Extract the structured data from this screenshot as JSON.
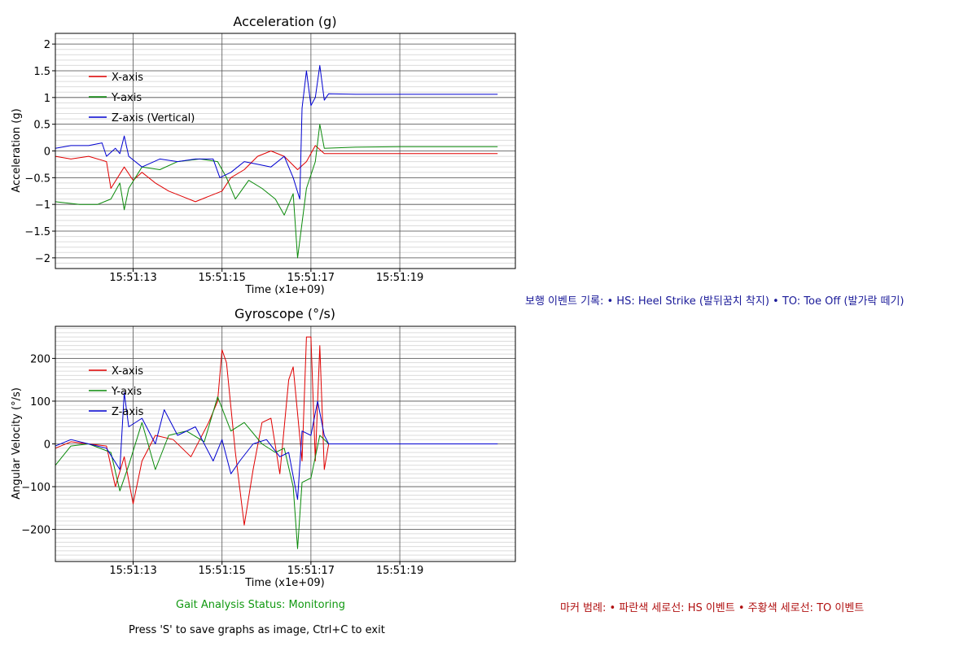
{
  "footer": {
    "status": "Gait Analysis Status: Monitoring",
    "hint": "Press 'S' to save graphs as image, Ctrl+C to exit"
  },
  "side_notes": {
    "events": "보행 이벤트 기록: • HS: Heel Strike (발뒤꿈치 착지) • TO: Toe Off (발가락 떼기)",
    "markers": "마커 범례: • 파란색 세로선: HS 이벤트 • 주황색 세로선: TO 이벤트"
  },
  "chart_data": [
    {
      "type": "line",
      "title": "Acceleration (g)",
      "xlabel": "Time (x1e+09)",
      "ylabel": "Acceleration (g)",
      "xlim": [
        "15:51:11.25",
        "15:51:21.60"
      ],
      "ylim": [
        -2.2,
        2.2
      ],
      "xticks": [
        "15:51:13",
        "15:51:15",
        "15:51:17",
        "15:51:19"
      ],
      "yticks": [
        "2",
        "1.5",
        "1",
        "0.5",
        "0",
        "−0.5",
        "−1",
        "−1.5",
        "−2"
      ],
      "grid": true,
      "legend_position": "top-left",
      "series": [
        {
          "name": "X-axis",
          "color": "#e00000",
          "points": [
            [
              "15:51:11.25",
              -0.1
            ],
            [
              "15:51:11.6",
              -0.15
            ],
            [
              "15:51:12",
              -0.1
            ],
            [
              "15:51:12.4",
              -0.2
            ],
            [
              "15:51:12.5",
              -0.7
            ],
            [
              "15:51:12.8",
              -0.3
            ],
            [
              "15:51:13",
              -0.55
            ],
            [
              "15:51:13.2",
              -0.4
            ],
            [
              "15:51:13.5",
              -0.6
            ],
            [
              "15:51:13.8",
              -0.75
            ],
            [
              "15:51:14.1",
              -0.85
            ],
            [
              "15:51:14.4",
              -0.95
            ],
            [
              "15:51:14.7",
              -0.85
            ],
            [
              "15:51:15",
              -0.75
            ],
            [
              "15:51:15.2",
              -0.5
            ],
            [
              "15:51:15.5",
              -0.35
            ],
            [
              "15:51:15.8",
              -0.1
            ],
            [
              "15:51:16.1",
              0.0
            ],
            [
              "15:51:16.4",
              -0.1
            ],
            [
              "15:51:16.7",
              -0.35
            ],
            [
              "15:51:16.9",
              -0.2
            ],
            [
              "15:51:17.1",
              0.1
            ],
            [
              "15:51:17.3",
              -0.05
            ],
            [
              "15:51:18",
              -0.05
            ],
            [
              "15:51:19",
              -0.05
            ],
            [
              "15:51:20",
              -0.05
            ],
            [
              "15:51:21.2",
              -0.05
            ]
          ]
        },
        {
          "name": "Y-axis",
          "color": "#0a8a0a",
          "points": [
            [
              "15:51:11.25",
              -0.95
            ],
            [
              "15:51:11.8",
              -1.0
            ],
            [
              "15:51:12.2",
              -1.0
            ],
            [
              "15:51:12.5",
              -0.9
            ],
            [
              "15:51:12.7",
              -0.6
            ],
            [
              "15:51:12.8",
              -1.1
            ],
            [
              "15:51:12.9",
              -0.7
            ],
            [
              "15:51:13.2",
              -0.3
            ],
            [
              "15:51:13.6",
              -0.35
            ],
            [
              "15:51:14",
              -0.2
            ],
            [
              "15:51:14.5",
              -0.15
            ],
            [
              "15:51:14.9",
              -0.2
            ],
            [
              "15:51:15.1",
              -0.5
            ],
            [
              "15:51:15.3",
              -0.9
            ],
            [
              "15:51:15.6",
              -0.55
            ],
            [
              "15:51:15.9",
              -0.7
            ],
            [
              "15:51:16.2",
              -0.9
            ],
            [
              "15:51:16.4",
              -1.2
            ],
            [
              "15:51:16.6",
              -0.8
            ],
            [
              "15:51:16.7",
              -2.0
            ],
            [
              "15:51:16.9",
              -0.7
            ],
            [
              "15:51:17.1",
              -0.2
            ],
            [
              "15:51:17.2",
              0.5
            ],
            [
              "15:51:17.3",
              0.05
            ],
            [
              "15:51:18",
              0.07
            ],
            [
              "15:51:19",
              0.08
            ],
            [
              "15:51:20",
              0.08
            ],
            [
              "15:51:21.2",
              0.08
            ]
          ]
        },
        {
          "name": "Z-axis (Vertical)",
          "color": "#0000d0",
          "points": [
            [
              "15:51:11.25",
              0.05
            ],
            [
              "15:51:11.6",
              0.1
            ],
            [
              "15:51:12",
              0.1
            ],
            [
              "15:51:12.3",
              0.15
            ],
            [
              "15:51:12.4",
              -0.1
            ],
            [
              "15:51:12.6",
              0.05
            ],
            [
              "15:51:12.7",
              -0.05
            ],
            [
              "15:51:12.8",
              0.28
            ],
            [
              "15:51:12.9",
              -0.1
            ],
            [
              "15:51:13.2",
              -0.3
            ],
            [
              "15:51:13.6",
              -0.15
            ],
            [
              "15:51:14",
              -0.2
            ],
            [
              "15:51:14.4",
              -0.15
            ],
            [
              "15:51:14.8",
              -0.15
            ],
            [
              "15:51:14.95",
              -0.5
            ],
            [
              "15:51:15.2",
              -0.4
            ],
            [
              "15:51:15.5",
              -0.2
            ],
            [
              "15:51:15.8",
              -0.25
            ],
            [
              "15:51:16.1",
              -0.3
            ],
            [
              "15:51:16.4",
              -0.1
            ],
            [
              "15:51:16.6",
              -0.5
            ],
            [
              "15:51:16.75",
              -0.9
            ],
            [
              "15:51:16.8",
              0.8
            ],
            [
              "15:51:16.9",
              1.5
            ],
            [
              "15:51:17.0",
              0.85
            ],
            [
              "15:51:17.1",
              1.0
            ],
            [
              "15:51:17.2",
              1.6
            ],
            [
              "15:51:17.3",
              0.95
            ],
            [
              "15:51:17.4",
              1.07
            ],
            [
              "15:51:18",
              1.06
            ],
            [
              "15:51:19",
              1.06
            ],
            [
              "15:51:20",
              1.06
            ],
            [
              "15:51:21.2",
              1.06
            ]
          ]
        }
      ]
    },
    {
      "type": "line",
      "title": "Gyroscope (°/s)",
      "xlabel": "Time (x1e+09)",
      "ylabel": "Angular Velocity (°/s)",
      "xlim": [
        "15:51:11.25",
        "15:51:21.60"
      ],
      "ylim": [
        -275,
        275
      ],
      "xticks": [
        "15:51:13",
        "15:51:15",
        "15:51:17",
        "15:51:19"
      ],
      "yticks": [
        "200",
        "100",
        "0",
        "−100",
        "−200"
      ],
      "grid": true,
      "legend_position": "top-left",
      "series": [
        {
          "name": "X-axis",
          "color": "#e00000",
          "points": [
            [
              "15:51:11.25",
              -10
            ],
            [
              "15:51:11.6",
              5
            ],
            [
              "15:51:12",
              0
            ],
            [
              "15:51:12.4",
              -5
            ],
            [
              "15:51:12.6",
              -100
            ],
            [
              "15:51:12.8",
              -30
            ],
            [
              "15:51:13",
              -140
            ],
            [
              "15:51:13.2",
              -40
            ],
            [
              "15:51:13.5",
              20
            ],
            [
              "15:51:13.9",
              10
            ],
            [
              "15:51:14.3",
              -30
            ],
            [
              "15:51:14.7",
              50
            ],
            [
              "15:51:14.9",
              100
            ],
            [
              "15:51:15.0",
              220
            ],
            [
              "15:51:15.1",
              190
            ],
            [
              "15:51:15.3",
              -20
            ],
            [
              "15:51:15.5",
              -190
            ],
            [
              "15:51:15.7",
              -60
            ],
            [
              "15:51:15.9",
              50
            ],
            [
              "15:51:16.1",
              60
            ],
            [
              "15:51:16.3",
              -70
            ],
            [
              "15:51:16.5",
              150
            ],
            [
              "15:51:16.6",
              180
            ],
            [
              "15:51:16.8",
              -40
            ],
            [
              "15:51:16.9",
              250
            ],
            [
              "15:51:17.0",
              250
            ],
            [
              "15:51:17.1",
              -40
            ],
            [
              "15:51:17.2",
              230
            ],
            [
              "15:51:17.3",
              -60
            ],
            [
              "15:51:17.4",
              0
            ],
            [
              "15:51:18",
              0
            ],
            [
              "15:51:19",
              0
            ],
            [
              "15:51:20",
              0
            ],
            [
              "15:51:21.2",
              0
            ]
          ]
        },
        {
          "name": "Y-axis",
          "color": "#0a8a0a",
          "points": [
            [
              "15:51:11.25",
              -50
            ],
            [
              "15:51:11.6",
              -5
            ],
            [
              "15:51:12",
              0
            ],
            [
              "15:51:12.5",
              -20
            ],
            [
              "15:51:12.7",
              -110
            ],
            [
              "15:51:12.9",
              -50
            ],
            [
              "15:51:13.2",
              50
            ],
            [
              "15:51:13.5",
              -60
            ],
            [
              "15:51:13.8",
              20
            ],
            [
              "15:51:14.2",
              30
            ],
            [
              "15:51:14.6",
              5
            ],
            [
              "15:51:14.9",
              110
            ],
            [
              "15:51:15.2",
              30
            ],
            [
              "15:51:15.5",
              50
            ],
            [
              "15:51:15.9",
              0
            ],
            [
              "15:51:16.2",
              -20
            ],
            [
              "15:51:16.4",
              -10
            ],
            [
              "15:51:16.6",
              -100
            ],
            [
              "15:51:16.7",
              -245
            ],
            [
              "15:51:16.8",
              -90
            ],
            [
              "15:51:17.0",
              -80
            ],
            [
              "15:51:17.2",
              20
            ],
            [
              "15:51:17.4",
              0
            ],
            [
              "15:51:18",
              0
            ],
            [
              "15:51:19",
              0
            ],
            [
              "15:51:20",
              0
            ],
            [
              "15:51:21.2",
              0
            ]
          ]
        },
        {
          "name": "Z-axis",
          "color": "#0000d0",
          "points": [
            [
              "15:51:11.25",
              -5
            ],
            [
              "15:51:11.6",
              10
            ],
            [
              "15:51:12",
              0
            ],
            [
              "15:51:12.4",
              -10
            ],
            [
              "15:51:12.7",
              -60
            ],
            [
              "15:51:12.8",
              120
            ],
            [
              "15:51:12.9",
              40
            ],
            [
              "15:51:13.2",
              60
            ],
            [
              "15:51:13.5",
              0
            ],
            [
              "15:51:13.7",
              80
            ],
            [
              "15:51:14.0",
              20
            ],
            [
              "15:51:14.4",
              40
            ],
            [
              "15:51:14.8",
              -40
            ],
            [
              "15:51:15.0",
              10
            ],
            [
              "15:51:15.2",
              -70
            ],
            [
              "15:51:15.4",
              -40
            ],
            [
              "15:51:15.7",
              0
            ],
            [
              "15:51:16.0",
              10
            ],
            [
              "15:51:16.3",
              -30
            ],
            [
              "15:51:16.5",
              -20
            ],
            [
              "15:51:16.7",
              -130
            ],
            [
              "15:51:16.8",
              30
            ],
            [
              "15:51:17.0",
              20
            ],
            [
              "15:51:17.15",
              100
            ],
            [
              "15:51:17.3",
              20
            ],
            [
              "15:51:17.4",
              0
            ],
            [
              "15:51:18",
              0
            ],
            [
              "15:51:19",
              0
            ],
            [
              "15:51:20",
              0
            ],
            [
              "15:51:21.2",
              0
            ]
          ]
        }
      ]
    }
  ]
}
